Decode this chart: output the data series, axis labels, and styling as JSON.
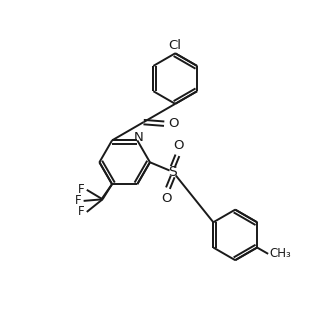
{
  "bg_color": "#ffffff",
  "line_color": "#1a1a1a",
  "line_width": 1.4,
  "font_size": 8.5,
  "figsize": [
    3.22,
    3.34
  ],
  "dpi": 100,
  "xlim": [
    0,
    10
  ],
  "ylim": [
    0,
    10.4
  ]
}
